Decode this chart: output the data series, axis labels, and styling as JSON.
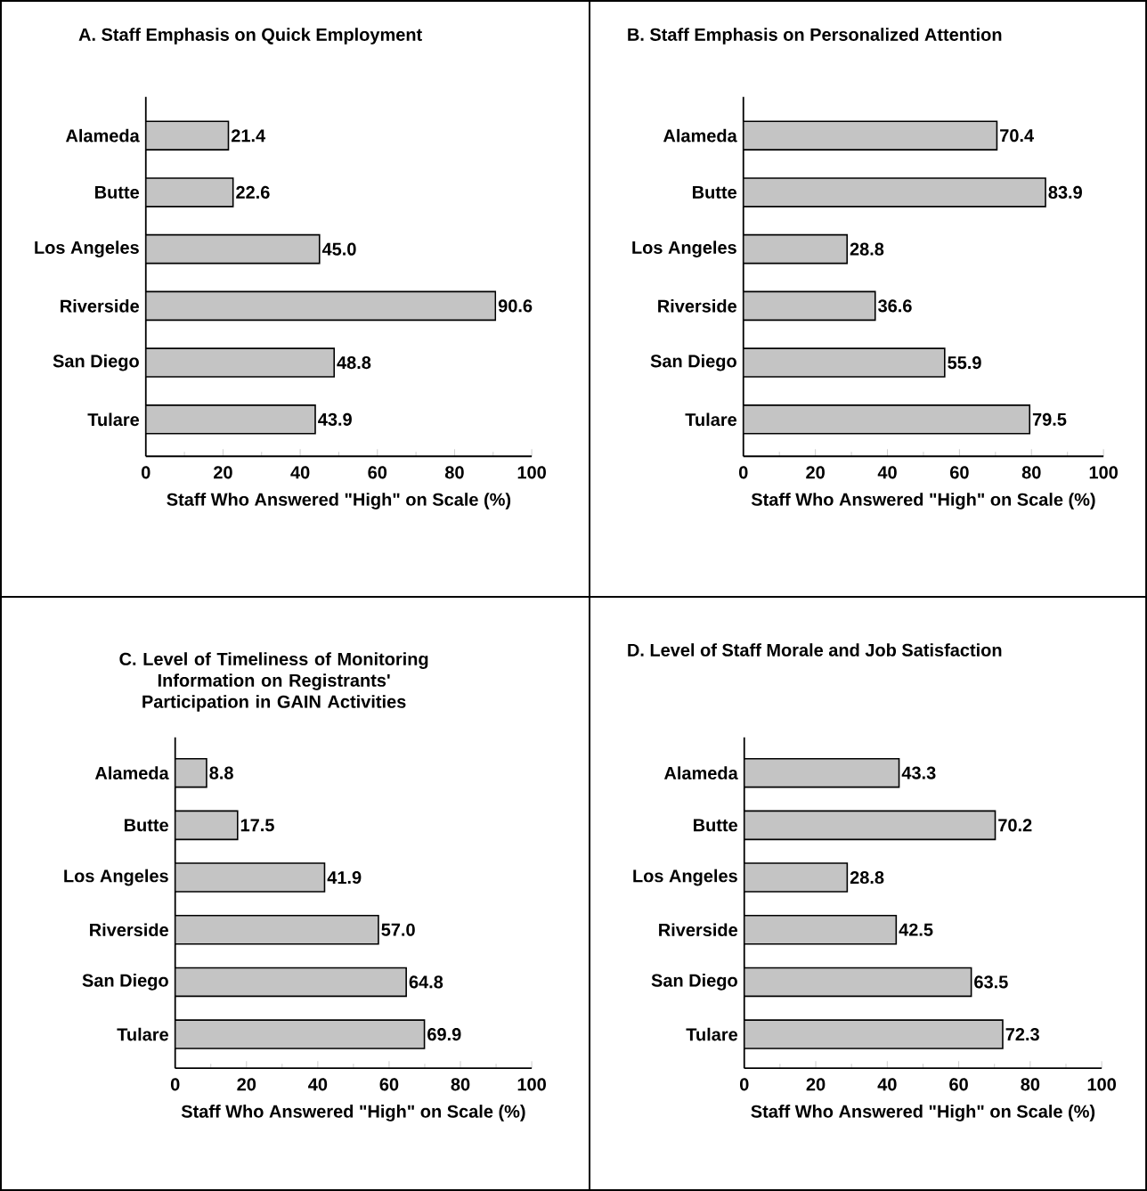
{
  "chart_data": [
    {
      "type": "bar",
      "orientation": "horizontal",
      "title": "A. Staff Emphasis on Quick Employment",
      "categories": [
        "Alameda",
        "Butte",
        "Los Angeles",
        "Riverside",
        "San Diego",
        "Tulare"
      ],
      "values": [
        21.4,
        22.6,
        45.0,
        90.6,
        48.8,
        43.9
      ],
      "value_labels": [
        "21.4",
        "22.6",
        "45.0",
        "90.6",
        "48.8",
        "43.9"
      ],
      "color": "#c4c4c4",
      "xlim": [
        0,
        100
      ],
      "xticks": [
        0,
        20,
        40,
        60,
        80,
        100
      ],
      "xlabel": "Staff Who Answered \"High\" on Scale (%)"
    },
    {
      "type": "bar",
      "orientation": "horizontal",
      "title": "B. Staff Emphasis on Personalized Attention",
      "categories": [
        "Alameda",
        "Butte",
        "Los Angeles",
        "Riverside",
        "San Diego",
        "Tulare"
      ],
      "values": [
        70.4,
        83.9,
        28.8,
        36.6,
        55.9,
        79.5
      ],
      "value_labels": [
        "70.4",
        "83.9",
        "28.8",
        "36.6",
        "55.9",
        "79.5"
      ],
      "color": "#c4c4c4",
      "xlim": [
        0,
        100
      ],
      "xticks": [
        0,
        20,
        40,
        60,
        80,
        100
      ],
      "xlabel": "Staff Who Answered \"High\" on Scale (%)"
    },
    {
      "type": "bar",
      "orientation": "horizontal",
      "title": "C. Level of Timeliness of Monitoring Information on Registrants' Participation in GAIN Activities",
      "categories": [
        "Alameda",
        "Butte",
        "Los Angeles",
        "Riverside",
        "San Diego",
        "Tulare"
      ],
      "values": [
        8.8,
        17.5,
        41.9,
        57.0,
        64.8,
        69.9
      ],
      "value_labels": [
        "8.8",
        "17.5",
        "41.9",
        "57.0",
        "64.8",
        "69.9"
      ],
      "color": "#c4c4c4",
      "xlim": [
        0,
        100
      ],
      "xticks": [
        0,
        20,
        40,
        60,
        80,
        100
      ],
      "xlabel": "Staff Who Answered \"High\" on Scale (%)"
    },
    {
      "type": "bar",
      "orientation": "horizontal",
      "title": "D. Level of Staff Morale and Job Satisfaction",
      "categories": [
        "Alameda",
        "Butte",
        "Los Angeles",
        "Riverside",
        "San Diego",
        "Tulare"
      ],
      "values": [
        43.3,
        70.2,
        28.8,
        42.5,
        63.5,
        72.3
      ],
      "value_labels": [
        "43.3",
        "70.2",
        "28.8",
        "42.5",
        "63.5",
        "72.3"
      ],
      "color": "#c4c4c4",
      "xlim": [
        0,
        100
      ],
      "xticks": [
        0,
        20,
        40,
        60,
        80,
        100
      ],
      "xlabel": "Staff Who Answered \"High\" on Scale (%)"
    }
  ]
}
